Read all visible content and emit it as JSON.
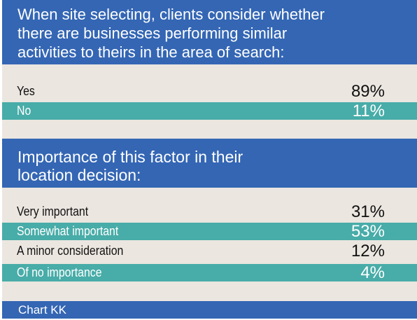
{
  "chart_data": [
    {
      "type": "table",
      "title": "When site selecting, clients consider whether there are businesses performing similar activities to theirs in the area of search:",
      "categories": [
        "Yes",
        "No"
      ],
      "values": [
        89,
        11
      ],
      "value_labels": [
        "89%",
        "11%"
      ]
    },
    {
      "type": "table",
      "title": "Importance of this factor in their location decision:",
      "categories": [
        "Very important",
        "Somewhat important",
        "A minor consideration",
        "Of no importance"
      ],
      "values": [
        31,
        53,
        12,
        4
      ],
      "value_labels": [
        "31%",
        "53%",
        "12%",
        "4%"
      ]
    }
  ],
  "header1_lines": [
    "When site selecting, clients consider whether",
    "there are businesses performing similar",
    "activities to theirs in the area of search:"
  ],
  "header2_lines": [
    "Importance of this factor in their",
    "location decision:"
  ],
  "footer": "Chart KK",
  "colors": {
    "header_blue": "#3466b4",
    "row_teal": "#48aca8",
    "background_beige": "#ebe6e0"
  }
}
